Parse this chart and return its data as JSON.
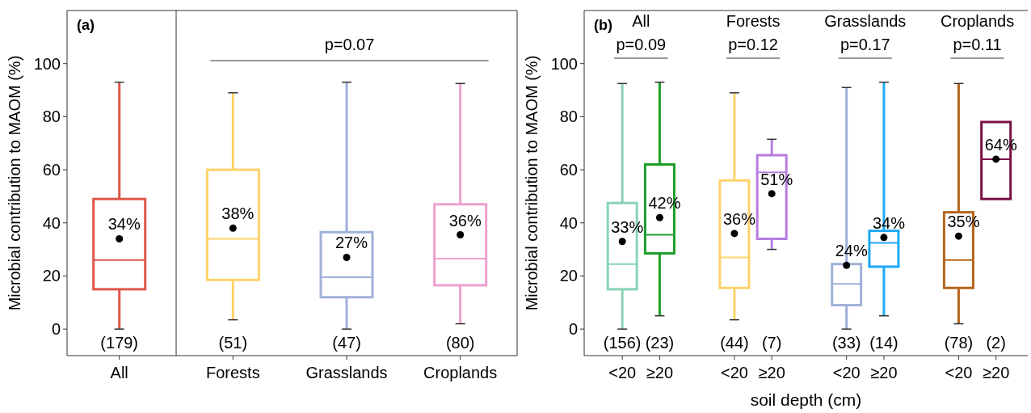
{
  "chart_data": [
    {
      "type": "box",
      "title": "(a)",
      "ylabel": "Microbial contribution to MAOM (%)",
      "categories": [
        "All",
        "Forests",
        "Grasslands",
        "Croplands"
      ],
      "colors": [
        "#e0574a",
        "#fdd36a",
        "#9fb0d8",
        "#ef9fcf"
      ],
      "boxes": [
        {
          "low": 0,
          "q1": 15,
          "median": 26,
          "q3": 49,
          "high": 93,
          "mean": 34
        },
        {
          "low": 3.5,
          "q1": 18.5,
          "median": 34,
          "q3": 60,
          "high": 89,
          "mean": 38
        },
        {
          "low": 0,
          "q1": 12,
          "median": 19.5,
          "q3": 36.5,
          "high": 93,
          "mean": 27
        },
        {
          "low": 2,
          "q1": 16.5,
          "median": 26.5,
          "q3": 47,
          "high": 92.5,
          "mean": 35.5
        }
      ],
      "ylim": [
        -10,
        120
      ],
      "yticks": [
        0,
        20,
        40,
        60,
        80,
        100
      ],
      "annotations": [
        "34%",
        "38%",
        "27%",
        "36%",
        "(179)",
        "(51)",
        "(47)",
        "(80)",
        "p=0.07"
      ]
    },
    {
      "type": "box",
      "title": "(b)",
      "ylabel": "Microbial contribution to MAOM (%)",
      "xlabel": "soil depth (cm)",
      "categories": [
        "<20",
        "≥20",
        null,
        "<20",
        "≥20",
        null,
        "<20",
        "≥20",
        null,
        "<20",
        "≥20"
      ],
      "colors": [
        "#88d4b5",
        "#1e9e2a",
        null,
        "#fdd36a",
        "#b57de0",
        null,
        "#9fb0d8",
        "#1ea8f5",
        null,
        "#b5651d",
        "#7a1048"
      ],
      "boxes": [
        {
          "low": 0,
          "q1": 15,
          "median": 24.5,
          "q3": 47.5,
          "high": 92.5,
          "mean": 33
        },
        {
          "low": 5,
          "q1": 28.5,
          "median": 35.5,
          "q3": 62,
          "high": 93,
          "mean": 42
        },
        null,
        {
          "low": 3.5,
          "q1": 15.5,
          "median": 27,
          "q3": 56,
          "high": 89,
          "mean": 36
        },
        {
          "low": 30,
          "q1": 34,
          "median": 59,
          "q3": 65.5,
          "high": 71.5,
          "mean": 51
        },
        null,
        {
          "low": 0,
          "q1": 9,
          "median": 17,
          "q3": 24.5,
          "high": 91,
          "mean": 24
        },
        {
          "low": 5,
          "q1": 23.5,
          "median": 32.5,
          "q3": 37,
          "high": 93,
          "mean": 34.5
        },
        null,
        {
          "low": 2,
          "q1": 15.5,
          "median": 26,
          "q3": 44,
          "high": 92.5,
          "mean": 35
        },
        {
          "low": 49,
          "q1": 49,
          "median": 64,
          "q3": 78,
          "high": 78,
          "mean": 64
        }
      ],
      "ylim": [
        -10,
        120
      ],
      "yticks": [
        0,
        20,
        40,
        60,
        80,
        100
      ],
      "annotations": [
        "33%",
        "42%",
        "36%",
        "51%",
        "24%",
        "34%",
        "35%",
        "64%",
        "(156)",
        "(23)",
        "(44)",
        "(7)",
        "(33)",
        "(14)",
        "(78)",
        "(2)",
        "All",
        "p=0.09",
        "Forests",
        "p=0.12",
        "Grasslands",
        "p=0.17",
        "Croplands",
        "p=0.11"
      ]
    }
  ]
}
